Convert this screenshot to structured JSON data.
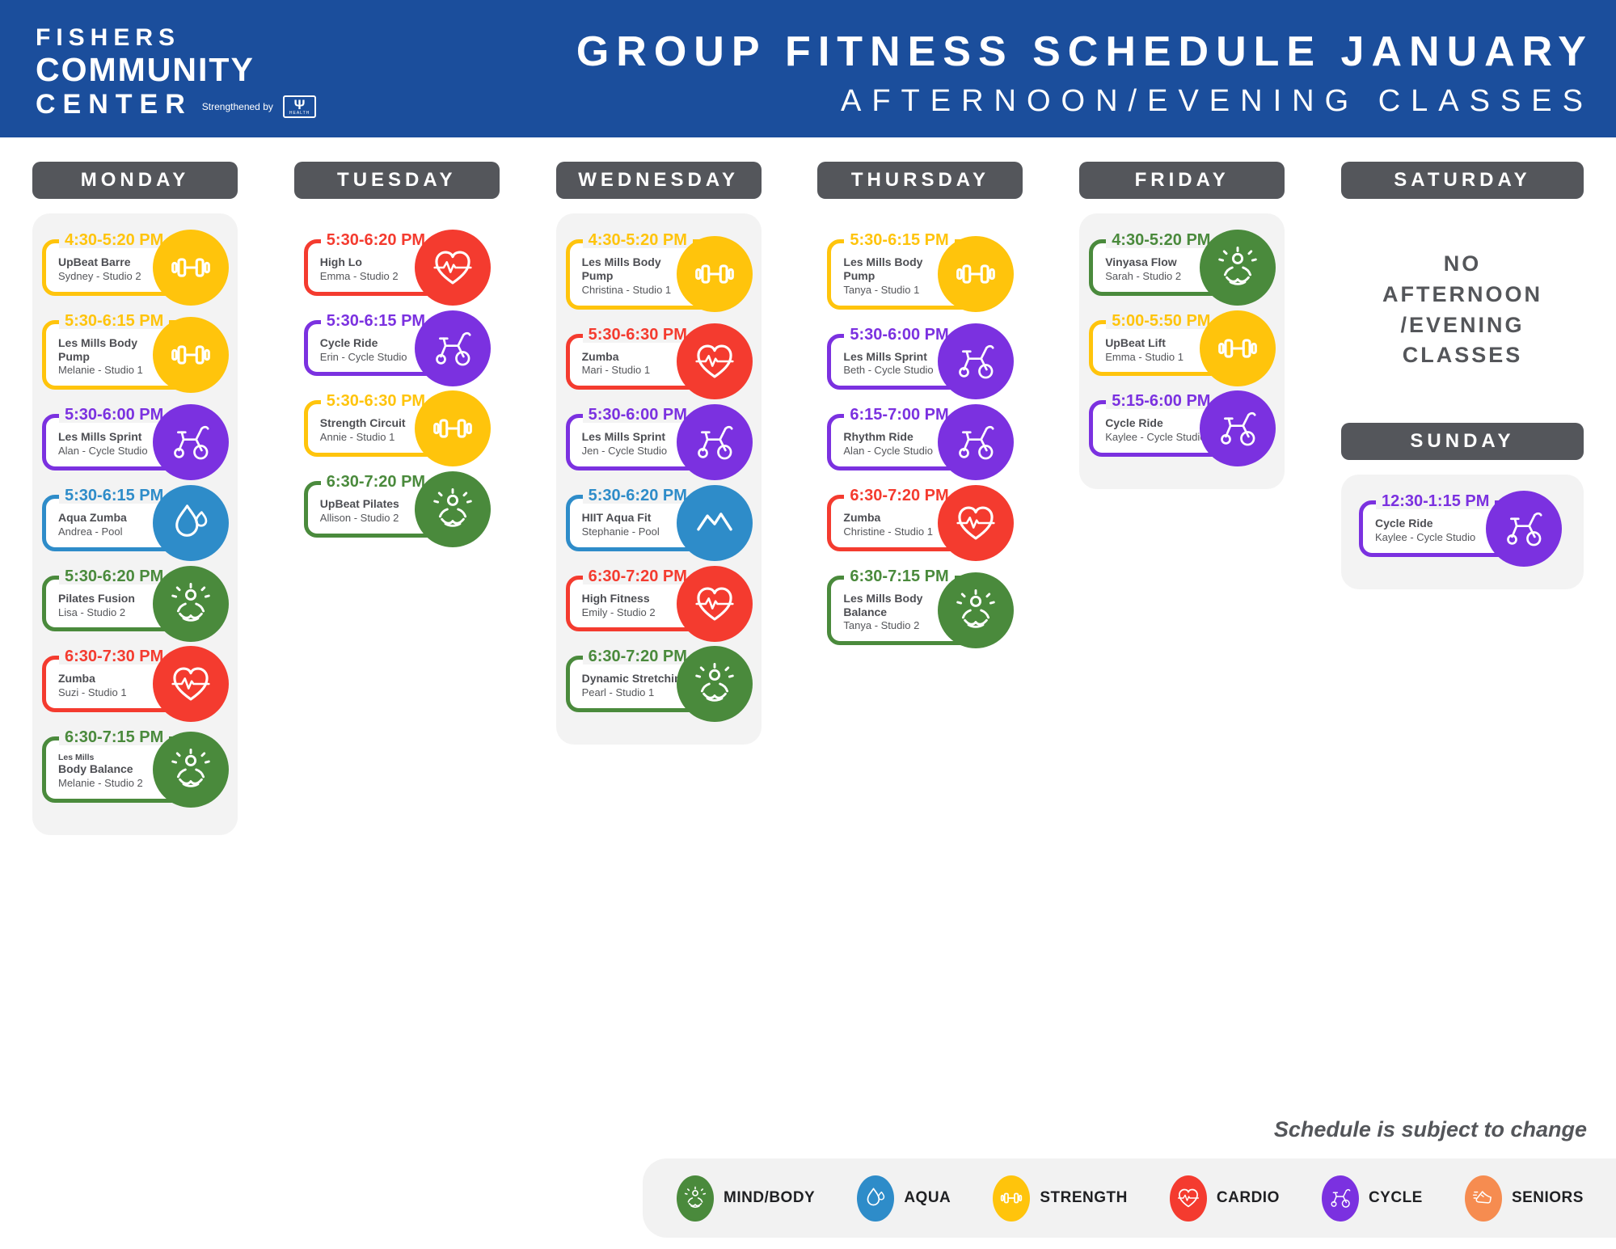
{
  "header": {
    "logo": {
      "line1": "FISHERS",
      "line2": "COMMUNITY",
      "line3": "CENTER",
      "strengthened_by": "Strengthened by",
      "iu_symbol": "Ψ",
      "iu_text": "HEALTH"
    },
    "title": "GROUP FITNESS SCHEDULE JANUARY",
    "subtitle": "AFTERNOON/EVENING CLASSES"
  },
  "colors": {
    "header_bg": "#1B4E9C",
    "day_header_bg": "#54565B",
    "column_bg": "#F3F3F3",
    "text": "#4D4E53",
    "strength": "#FFC40C",
    "cardio": "#F43B2F",
    "cycle": "#7B31E0",
    "aqua": "#2E8CC9",
    "mindbody": "#4A8A3C",
    "seniors": "#F68C50"
  },
  "days": [
    {
      "name": "MONDAY",
      "classes": [
        {
          "time": "4:30-5:20 PM",
          "name": "UpBeat Barre",
          "detail": "Sydney - Studio 2",
          "category": "strength",
          "icon": "dumbbell-icon"
        },
        {
          "time": "5:30-6:15 PM",
          "name": "Les Mills Body Pump",
          "detail": "Melanie - Studio 1",
          "category": "strength",
          "icon": "dumbbell-icon"
        },
        {
          "time": "5:30-6:00 PM",
          "name": "Les Mills Sprint",
          "detail": "Alan - Cycle Studio",
          "category": "cycle",
          "icon": "spin-bike-icon"
        },
        {
          "time": "5:30-6:15 PM",
          "name": "Aqua Zumba",
          "detail": "Andrea - Pool",
          "category": "aqua",
          "icon": "water-drop-icon"
        },
        {
          "time": "5:30-6:20 PM",
          "name": "Pilates Fusion",
          "detail": "Lisa - Studio 2",
          "category": "mindbody",
          "icon": "meditation-icon"
        },
        {
          "time": "6:30-7:30 PM",
          "name": "Zumba",
          "detail": "Suzi - Studio 1",
          "category": "cardio",
          "icon": "heart-pulse-icon"
        },
        {
          "time": "6:30-7:15 PM",
          "pre": "Les Mills",
          "name": "Body Balance",
          "detail": "Melanie - Studio 2",
          "category": "mindbody",
          "icon": "meditation-icon"
        }
      ]
    },
    {
      "name": "TUESDAY",
      "classes": [
        {
          "time": "5:30-6:20 PM",
          "name": "High Lo",
          "detail": "Emma - Studio 2",
          "category": "cardio",
          "icon": "heart-pulse-icon"
        },
        {
          "time": "5:30-6:15 PM",
          "name": "Cycle Ride",
          "detail": "Erin - Cycle Studio",
          "category": "cycle",
          "icon": "spin-bike-icon"
        },
        {
          "time": "5:30-6:30 PM",
          "name": "Strength Circuit",
          "detail": "Annie - Studio 1",
          "category": "strength",
          "icon": "dumbbell-icon"
        },
        {
          "time": "6:30-7:20 PM",
          "name": "UpBeat Pilates",
          "detail": "Allison - Studio 2",
          "category": "mindbody",
          "icon": "meditation-icon"
        }
      ]
    },
    {
      "name": "WEDNESDAY",
      "classes": [
        {
          "time": "4:30-5:20 PM",
          "name": "Les Mills Body Pump",
          "detail": "Christina - Studio 1",
          "category": "strength",
          "icon": "dumbbell-icon"
        },
        {
          "time": "5:30-6:30 PM",
          "name": "Zumba",
          "detail": "Mari - Studio 1",
          "category": "cardio",
          "icon": "heart-pulse-icon"
        },
        {
          "time": "5:30-6:00 PM",
          "name": "Les Mills Sprint",
          "detail": "Jen - Cycle Studio",
          "category": "cycle",
          "icon": "spin-bike-icon"
        },
        {
          "time": "5:30-6:20 PM",
          "name": "HIIT Aqua Fit",
          "detail": "Stephanie - Pool",
          "category": "aqua",
          "icon": "wave-peaks-icon"
        },
        {
          "time": "6:30-7:20 PM",
          "name": "High Fitness",
          "detail": "Emily - Studio 2",
          "category": "cardio",
          "icon": "heart-pulse-icon"
        },
        {
          "time": "6:30-7:20 PM",
          "name": "Dynamic Stretching",
          "detail": "Pearl - Studio 1",
          "category": "mindbody",
          "icon": "meditation-icon"
        }
      ]
    },
    {
      "name": "THURSDAY",
      "classes": [
        {
          "time": "5:30-6:15 PM",
          "name": "Les Mills Body Pump",
          "detail": "Tanya - Studio 1",
          "category": "strength",
          "icon": "dumbbell-icon"
        },
        {
          "time": "5:30-6:00 PM",
          "name": "Les Mills Sprint",
          "detail": "Beth - Cycle Studio",
          "category": "cycle",
          "icon": "spin-bike-icon"
        },
        {
          "time": "6:15-7:00 PM",
          "name": "Rhythm Ride",
          "detail": "Alan - Cycle Studio",
          "category": "cycle",
          "icon": "spin-bike-icon"
        },
        {
          "time": "6:30-7:20 PM",
          "name": "Zumba",
          "detail": "Christine - Studio 1",
          "category": "cardio",
          "icon": "heart-pulse-icon"
        },
        {
          "time": "6:30-7:15 PM",
          "name": "Les Mills Body Balance",
          "detail": "Tanya - Studio 2",
          "category": "mindbody",
          "icon": "meditation-icon"
        }
      ]
    },
    {
      "name": "FRIDAY",
      "classes": [
        {
          "time": "4:30-5:20 PM",
          "name": "Vinyasa Flow",
          "detail": "Sarah - Studio 2",
          "category": "mindbody",
          "icon": "meditation-icon"
        },
        {
          "time": "5:00-5:50 PM",
          "name": "UpBeat Lift",
          "detail": "Emma - Studio 1",
          "category": "strength",
          "icon": "dumbbell-icon"
        },
        {
          "time": "5:15-6:00 PM",
          "name": "Cycle Ride",
          "detail": "Kaylee - Cycle Studio",
          "category": "cycle",
          "icon": "spin-bike-icon"
        }
      ]
    },
    {
      "name": "SATURDAY",
      "note": "NO\nAFTERNOON\n/EVENING\nCLASSES",
      "classes": []
    },
    {
      "name": "SUNDAY",
      "classes": [
        {
          "time": "12:30-1:15 PM",
          "name": "Cycle Ride",
          "detail": "Kaylee - Cycle Studio",
          "category": "cycle",
          "icon": "spin-bike-icon"
        }
      ]
    }
  ],
  "footer": {
    "note": "Schedule is subject to change",
    "legend": [
      {
        "label": "MIND/BODY",
        "category": "mindbody",
        "icon": "meditation-icon"
      },
      {
        "label": "AQUA",
        "category": "aqua",
        "icon": "water-drop-icon"
      },
      {
        "label": "STRENGTH",
        "category": "strength",
        "icon": "dumbbell-icon"
      },
      {
        "label": "CARDIO",
        "category": "cardio",
        "icon": "heart-pulse-icon"
      },
      {
        "label": "CYCLE",
        "category": "cycle",
        "icon": "spin-bike-icon"
      },
      {
        "label": "SENIORS",
        "category": "seniors",
        "icon": "running-shoe-icon"
      }
    ]
  }
}
